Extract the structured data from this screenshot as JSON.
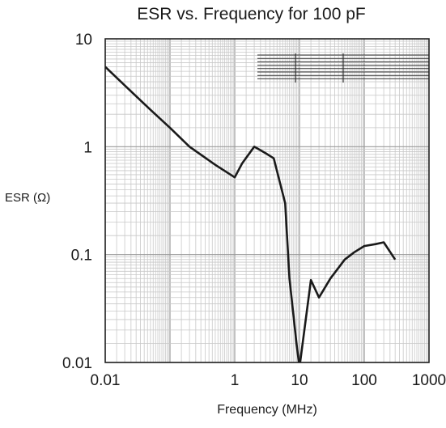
{
  "chart_data": {
    "type": "line",
    "title": "ESR vs. Frequency for 100 pF",
    "xlabel": "Frequency (MHz)",
    "ylabel": "ESR (Ω)",
    "x_scale": "log",
    "y_scale": "log",
    "xlim": [
      0.01,
      1000
    ],
    "ylim": [
      0.01,
      10
    ],
    "grid": true,
    "x_ticks": [
      "0.01",
      "1",
      "10",
      "100",
      "1000"
    ],
    "y_ticks": [
      "10",
      "1",
      "0.1",
      "0.01"
    ],
    "series": [
      {
        "x": [
          0.01,
          0.02,
          0.05,
          0.1,
          0.2,
          0.5,
          1.0,
          1.3,
          2.0,
          3.0,
          4.0,
          6.0,
          7.0,
          9.0,
          10.0,
          15.0,
          20.0,
          30.0,
          50.0,
          70.0,
          100.0,
          150.0,
          200.0,
          300.0
        ],
        "y": [
          5.5,
          3.7,
          2.2,
          1.5,
          1.0,
          0.68,
          0.52,
          0.7,
          1.0,
          0.87,
          0.78,
          0.3,
          0.06,
          0.015,
          0.009,
          0.058,
          0.04,
          0.06,
          0.09,
          0.105,
          0.12,
          0.125,
          0.13,
          0.09
        ]
      }
    ],
    "color": "#1a1a1a"
  }
}
